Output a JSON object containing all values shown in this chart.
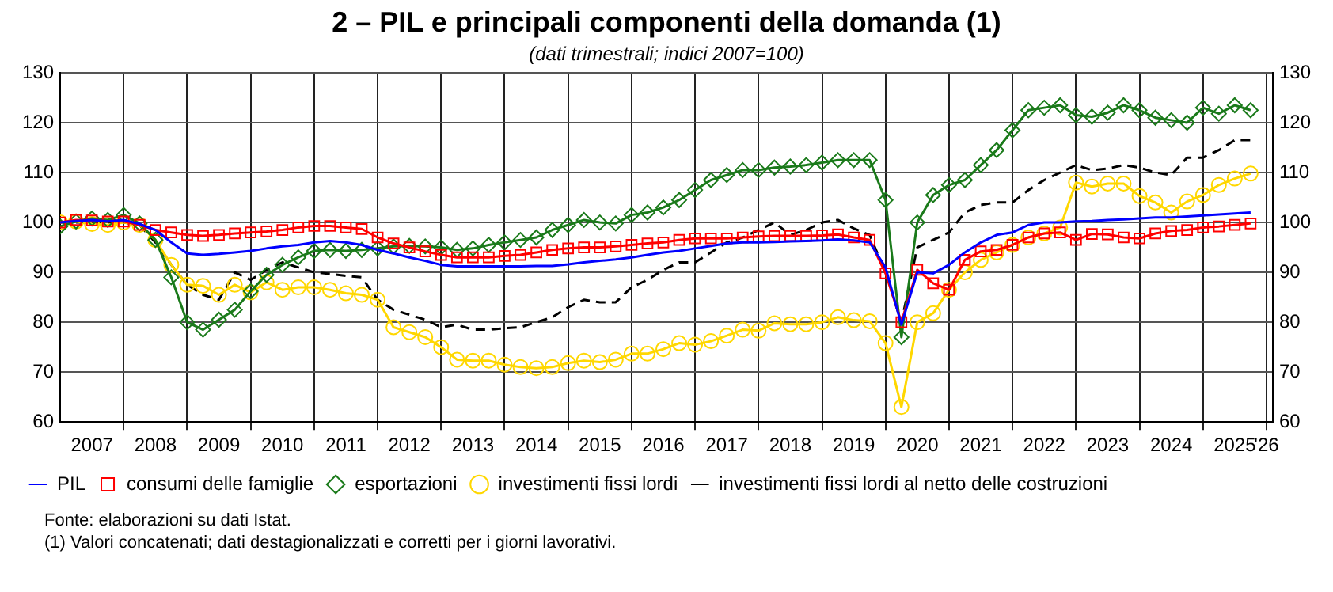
{
  "chart_data": {
    "type": "line",
    "title": "2 – PIL e principali componenti della domanda (1)",
    "subtitle": "(dati trimestrali; indici 2007=100)",
    "x": [
      2007,
      2007.25,
      2007.5,
      2007.75,
      2008,
      2008.25,
      2008.5,
      2008.75,
      2009,
      2009.25,
      2009.5,
      2009.75,
      2010,
      2010.25,
      2010.5,
      2010.75,
      2011,
      2011.25,
      2011.5,
      2011.75,
      2012,
      2012.25,
      2012.5,
      2012.75,
      2013,
      2013.25,
      2013.5,
      2013.75,
      2014,
      2014.25,
      2014.5,
      2014.75,
      2015,
      2015.25,
      2015.5,
      2015.75,
      2016,
      2016.25,
      2016.5,
      2016.75,
      2017,
      2017.25,
      2017.5,
      2017.75,
      2018,
      2018.25,
      2018.5,
      2018.75,
      2019,
      2019.25,
      2019.5,
      2019.75,
      2020,
      2020.25,
      2020.5,
      2020.75,
      2021,
      2021.25,
      2021.5,
      2021.75,
      2022,
      2022.25,
      2022.5,
      2022.75,
      2023,
      2023.25,
      2023.5,
      2023.75,
      2024,
      2024.25,
      2024.5,
      2024.75,
      2025,
      2025.25,
      2025.5,
      2025.75
    ],
    "series": [
      {
        "name": "PIL",
        "color": "#0000ff",
        "marker": "none",
        "line_style": "solid",
        "values": [
          100,
          100.3,
          100.5,
          100.2,
          100.5,
          99.7,
          98.5,
          96,
          93.8,
          93.5,
          93.7,
          94,
          94.3,
          94.8,
          95.2,
          95.5,
          96,
          96.3,
          96,
          95.5,
          94.5,
          93.8,
          93,
          92.3,
          91.5,
          91.2,
          91.2,
          91.2,
          91.2,
          91.2,
          91.3,
          91.3,
          91.6,
          92,
          92.3,
          92.6,
          93,
          93.5,
          94,
          94.3,
          94.8,
          95.3,
          95.8,
          96,
          96,
          96.1,
          96.2,
          96.3,
          96.4,
          96.6,
          96.4,
          96,
          91,
          79.5,
          90,
          89.8,
          91.5,
          94,
          96,
          97.5,
          98,
          99.5,
          100,
          100,
          100.2,
          100.3,
          100.5,
          100.6,
          100.8,
          101,
          101,
          101.2,
          101.4,
          101.6,
          101.8,
          102
        ]
      },
      {
        "name": "consumi delle famiglie",
        "color": "#ff0000",
        "marker": "square",
        "line_style": "solid",
        "values": [
          100,
          100.5,
          100.4,
          100.2,
          100.2,
          99.5,
          98.5,
          98,
          97.5,
          97.3,
          97.5,
          97.8,
          98,
          98.2,
          98.5,
          99,
          99.3,
          99.3,
          99,
          98.7,
          97,
          95.8,
          95,
          94.2,
          93.5,
          93,
          93,
          93,
          93.3,
          93.5,
          94,
          94.5,
          94.8,
          95,
          95,
          95.2,
          95.5,
          95.8,
          96,
          96.5,
          96.8,
          96.8,
          96.8,
          97,
          97.2,
          97.3,
          97.3,
          97.3,
          97.4,
          97.6,
          97,
          96.5,
          89.8,
          80,
          90.5,
          87.8,
          86.5,
          92.5,
          94.2,
          94.5,
          95.5,
          97,
          97.8,
          98,
          96.5,
          97.7,
          97.6,
          97,
          96.8,
          97.8,
          98.3,
          98.5,
          99,
          99.2,
          99.5,
          99.8
        ]
      },
      {
        "name": "esportazioni",
        "color": "#1a7a1a",
        "marker": "diamond",
        "line_style": "solid",
        "values": [
          99.2,
          100.2,
          100.8,
          100.5,
          101.5,
          99.8,
          96.5,
          89,
          80,
          78.5,
          80.5,
          82.5,
          86.2,
          89.5,
          91.5,
          93,
          94.3,
          94.5,
          94.3,
          94.5,
          94.8,
          95.2,
          95.3,
          95.2,
          95,
          94.5,
          94.8,
          95.5,
          96,
          96.5,
          97,
          98.5,
          99.5,
          100.5,
          100,
          99.8,
          101.5,
          102,
          103,
          104.5,
          106.5,
          108.5,
          109.5,
          110.5,
          110.5,
          111,
          111.2,
          111.5,
          112,
          112.5,
          112.5,
          112.5,
          104.5,
          77,
          100,
          105.5,
          107.5,
          108.5,
          111.5,
          114.5,
          118.5,
          122.5,
          123,
          123.5,
          121.5,
          121.2,
          122,
          123.5,
          122.5,
          121,
          120.5,
          120,
          123,
          121.8,
          123.5,
          122.5
        ]
      },
      {
        "name": "investimenti fissi lordi",
        "color": "#ffd700",
        "marker": "circle",
        "line_style": "solid",
        "values": [
          100,
          100.2,
          99.7,
          99.5,
          100,
          99.5,
          96.5,
          91.5,
          87.5,
          87.3,
          85.5,
          87.5,
          86,
          88,
          86.5,
          87,
          87,
          86.5,
          85.8,
          85.5,
          84.5,
          79,
          78,
          77,
          75,
          72.5,
          72.3,
          72.3,
          71.5,
          71,
          70.8,
          71,
          71.8,
          72.3,
          72,
          72.5,
          73.7,
          73.7,
          74.6,
          75.8,
          75.5,
          76.2,
          77.3,
          78.5,
          78.3,
          79.8,
          79.6,
          79.6,
          80,
          81,
          80.4,
          80.2,
          75.8,
          63,
          80,
          81.8,
          86.5,
          90,
          92.5,
          94,
          95.5,
          97,
          97.8,
          99,
          108,
          107.2,
          107.8,
          107.8,
          105.3,
          104,
          102,
          104.2,
          105.5,
          107.5,
          108.8,
          109.8
        ]
      },
      {
        "name": "investimenti fissi lordi al netto delle costruzioni",
        "color": "#000000",
        "marker": "none",
        "line_style": "dashed",
        "values": [
          100,
          100,
          100,
          100,
          100,
          99.5,
          96,
          91.5,
          87.5,
          85.5,
          84.5,
          90,
          88.5,
          90.5,
          92,
          91,
          90,
          89.7,
          89.3,
          89,
          84.5,
          82.5,
          81.5,
          80.5,
          79,
          79.5,
          78.5,
          78.5,
          78.8,
          79,
          80,
          81,
          83,
          84.5,
          84,
          84,
          87,
          88.5,
          90.5,
          92,
          92,
          94,
          96,
          97,
          98.5,
          100,
          97.5,
          98.5,
          100,
          100.5,
          98.8,
          97.5,
          90,
          80,
          95,
          96.5,
          98,
          102,
          103.5,
          104,
          104,
          106.5,
          108.5,
          110,
          111.5,
          110.5,
          110.8,
          111.5,
          111,
          110,
          109.5,
          113,
          113,
          114.5,
          116.5,
          116.5
        ]
      }
    ],
    "xlim": [
      2007,
      2026.1
    ],
    "xticks": [
      {
        "value": 2007.5,
        "label": "2007"
      },
      {
        "value": 2008,
        "label": null
      },
      {
        "value": 2008.5,
        "label": "2008"
      },
      {
        "value": 2009,
        "label": null
      },
      {
        "value": 2009.5,
        "label": "2009"
      },
      {
        "value": 2010,
        "label": null
      },
      {
        "value": 2010.5,
        "label": "2010"
      },
      {
        "value": 2011,
        "label": null
      },
      {
        "value": 2011.5,
        "label": "2011"
      },
      {
        "value": 2012,
        "label": null
      },
      {
        "value": 2012.5,
        "label": "2012"
      },
      {
        "value": 2013,
        "label": null
      },
      {
        "value": 2013.5,
        "label": "2013"
      },
      {
        "value": 2014,
        "label": null
      },
      {
        "value": 2014.5,
        "label": "2014"
      },
      {
        "value": 2015,
        "label": null
      },
      {
        "value": 2015.5,
        "label": "2015"
      },
      {
        "value": 2016,
        "label": null
      },
      {
        "value": 2016.5,
        "label": "2016"
      },
      {
        "value": 2017,
        "label": null
      },
      {
        "value": 2017.5,
        "label": "2017"
      },
      {
        "value": 2018,
        "label": null
      },
      {
        "value": 2018.5,
        "label": "2018"
      },
      {
        "value": 2019,
        "label": null
      },
      {
        "value": 2019.5,
        "label": "2019"
      },
      {
        "value": 2020,
        "label": null
      },
      {
        "value": 2020.5,
        "label": "2020"
      },
      {
        "value": 2021,
        "label": null
      },
      {
        "value": 2021.5,
        "label": "2021"
      },
      {
        "value": 2022,
        "label": null
      },
      {
        "value": 2022.5,
        "label": "2022"
      },
      {
        "value": 2023,
        "label": null
      },
      {
        "value": 2023.5,
        "label": "2023"
      },
      {
        "value": 2024,
        "label": null
      },
      {
        "value": 2024.5,
        "label": "2024"
      },
      {
        "value": 2025,
        "label": null
      },
      {
        "value": 2025.5,
        "label": "2025"
      },
      {
        "value": 2026,
        "label": "'26"
      }
    ],
    "ylim": [
      60,
      130
    ],
    "yticks": [
      60,
      70,
      80,
      90,
      100,
      110,
      120,
      130
    ],
    "y2lim": [
      60,
      130
    ],
    "y2ticks": [
      60,
      70,
      80,
      90,
      100,
      110,
      120,
      130
    ],
    "grid": true,
    "legend": "bottom",
    "annotations": [
      "Fonte: elaborazioni su dati Istat.",
      "(1) Valori concatenati; dati destagionalizzati e corretti per i giorni lavorativi."
    ]
  }
}
